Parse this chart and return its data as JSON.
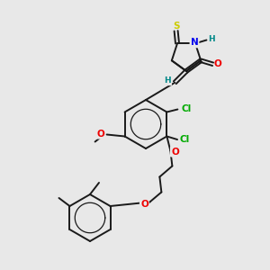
{
  "bg_color": "#e8e8e8",
  "bond_color": "#1a1a1a",
  "bond_lw": 1.4,
  "atom_colors": {
    "S": "#cccc00",
    "N": "#0000ee",
    "O": "#ee0000",
    "Cl": "#00aa00",
    "H": "#008888",
    "C": "#1a1a1a"
  },
  "font_size": 7.5,
  "font_size_small": 6.5
}
